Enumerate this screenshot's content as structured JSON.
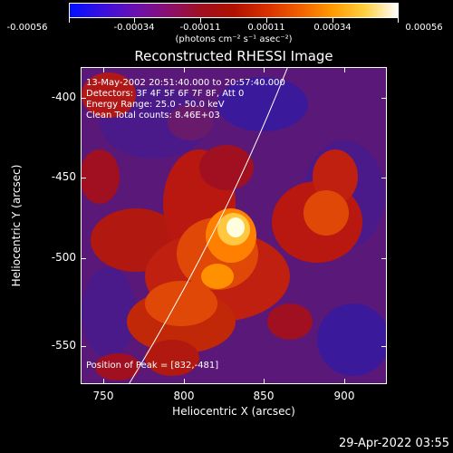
{
  "colorbar": {
    "ticks": [
      "-0.00056",
      "-0.00034",
      "-0.00011",
      "0.00011",
      "0.00034",
      "0.00056"
    ],
    "unit_label": "(photons cm⁻² s⁻¹ asec⁻²)"
  },
  "plot": {
    "title": "Reconstructed RHESSI Image",
    "info_lines": [
      "13-May-2002 20:51:40.000 to 20:57:40.000",
      "Detectors: 3F 4F 5F 6F 7F 8F, Att 0",
      "Energy Range: 25.0 - 50.0 keV",
      "Clean     Total counts: 8.46E+03"
    ],
    "peak_label": "Position of Peak = [832,-481]",
    "x_axis": {
      "title": "Heliocentric X (arcsec)",
      "ticks": [
        "750",
        "800",
        "850",
        "900"
      ]
    },
    "y_axis": {
      "title": "Heliocentric Y (arcsec)",
      "ticks": [
        "-400",
        "-450",
        "-500",
        "-550"
      ]
    }
  },
  "timestamp": "29-Apr-2022 03:55"
}
